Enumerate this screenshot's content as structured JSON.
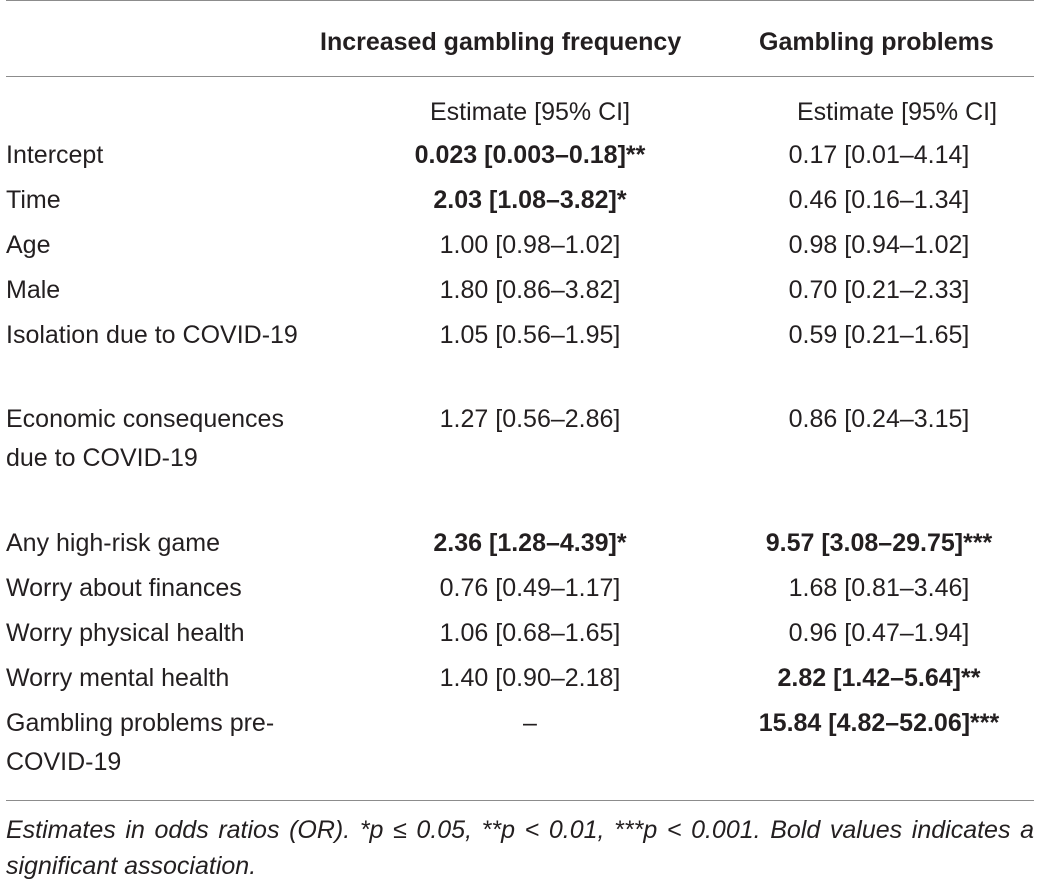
{
  "table": {
    "column_headers": [
      "Increased gambling frequency",
      "Gambling problems"
    ],
    "sub_headers": [
      "Estimate [95% CI]",
      "Estimate [95% CI]"
    ],
    "rows": [
      {
        "variable": "Intercept",
        "freq": "0.023 [0.003–0.18]**",
        "freq_bold": true,
        "prob": "0.17 [0.01–4.14]",
        "prob_bold": false,
        "lines": 1
      },
      {
        "variable": "Time",
        "freq": "2.03 [1.08–3.82]*",
        "freq_bold": true,
        "prob": "0.46 [0.16–1.34]",
        "prob_bold": false,
        "lines": 1
      },
      {
        "variable": "Age",
        "freq": "1.00 [0.98–1.02]",
        "freq_bold": false,
        "prob": "0.98 [0.94–1.02]",
        "prob_bold": false,
        "lines": 1
      },
      {
        "variable": "Male",
        "freq": "1.80 [0.86–3.82]",
        "freq_bold": false,
        "prob": "0.70 [0.21–2.33]",
        "prob_bold": false,
        "lines": 1
      },
      {
        "variable": "Isolation due to COVID-19",
        "freq": "1.05 [0.56–1.95]",
        "freq_bold": false,
        "prob": "0.59 [0.21–1.65]",
        "prob_bold": false,
        "lines": 2
      },
      {
        "variable": "Economic consequences due to COVID-19",
        "freq": "1.27 [0.56–2.86]",
        "freq_bold": false,
        "prob": "0.86 [0.24–3.15]",
        "prob_bold": false,
        "lines": 3
      },
      {
        "variable": "Any high-risk game",
        "freq": "2.36 [1.28–4.39]*",
        "freq_bold": true,
        "prob": "9.57 [3.08–29.75]***",
        "prob_bold": true,
        "lines": 1
      },
      {
        "variable": "Worry about finances",
        "freq": "0.76 [0.49–1.17]",
        "freq_bold": false,
        "prob": "1.68 [0.81–3.46]",
        "prob_bold": false,
        "lines": 1
      },
      {
        "variable": "Worry physical health",
        "freq": "1.06 [0.68–1.65]",
        "freq_bold": false,
        "prob": "0.96 [0.47–1.94]",
        "prob_bold": false,
        "lines": 1
      },
      {
        "variable": "Worry mental health",
        "freq": "1.40 [0.90–2.18]",
        "freq_bold": false,
        "prob": "2.82 [1.42–5.64]**",
        "prob_bold": true,
        "lines": 1
      },
      {
        "variable": "Gambling problems pre-COVID-19",
        "freq": "–",
        "freq_bold": false,
        "prob": "15.84 [4.82–52.06]***",
        "prob_bold": true,
        "lines": 2
      }
    ]
  },
  "footnote": "Estimates in odds ratios (OR). *p ≤ 0.05, **p < 0.01, ***p < 0.001. Bold values indicates a significant association."
}
